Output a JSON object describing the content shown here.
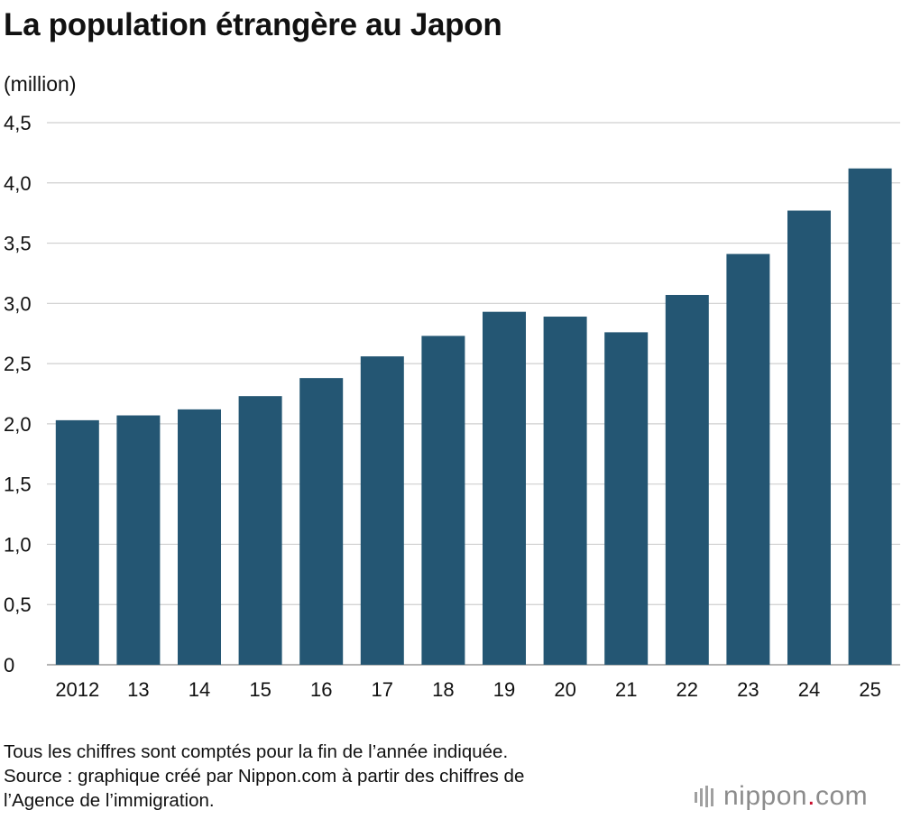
{
  "title": "La population étrangère au Japon",
  "unit_label": "(million)",
  "notes": [
    "Tous les chiffres sont comptés pour la fin de l’année indiquée.",
    "Source : graphique créé par Nippon.com à partir des chiffres de",
    "l’Agence de l’immigration."
  ],
  "logo": {
    "name": "nippon",
    "dot": ".",
    "tld": "com",
    "icon": "nippon-bars-icon"
  },
  "colors": {
    "bar": "#245673",
    "grid": "#cfcfcf",
    "logo_dot": "#c8102e"
  },
  "chart_data": {
    "type": "bar",
    "title": "La population étrangère au Japon",
    "ylabel": "(million)",
    "xlabel": "",
    "categories": [
      "2012",
      "13",
      "14",
      "15",
      "16",
      "17",
      "18",
      "19",
      "20",
      "21",
      "22",
      "23",
      "24",
      "25"
    ],
    "values": [
      2.03,
      2.07,
      2.12,
      2.23,
      2.38,
      2.56,
      2.73,
      2.93,
      2.89,
      2.76,
      3.07,
      3.41,
      3.77,
      4.12
    ],
    "ylim": [
      0,
      4.5
    ],
    "yticks": [
      0,
      0.5,
      1.0,
      1.5,
      2.0,
      2.5,
      3.0,
      3.5,
      4.0,
      4.5
    ],
    "ytick_labels": [
      "0",
      "0,5",
      "1,0",
      "1,5",
      "2,0",
      "2,5",
      "3,0",
      "3,5",
      "4,0",
      "4,5"
    ],
    "grid": true,
    "legend": "none"
  }
}
